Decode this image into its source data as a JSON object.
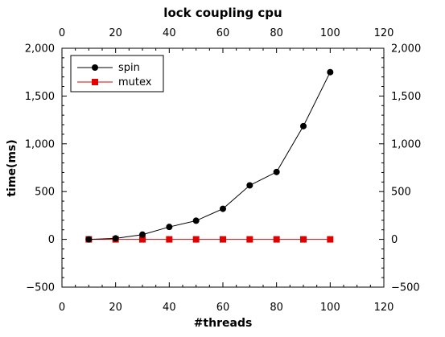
{
  "chart_data": {
    "type": "line",
    "title": "lock coupling cpu",
    "xlabel": "#threads",
    "ylabel": "time(ms)",
    "xlim": [
      0,
      120
    ],
    "ylim": [
      -500,
      2000
    ],
    "x_ticks": [
      0,
      20,
      40,
      60,
      80,
      100,
      120
    ],
    "y_ticks": [
      -500,
      0,
      500,
      1000,
      1500,
      2000
    ],
    "x_tick_labels": [
      "0",
      "20",
      "40",
      "60",
      "80",
      "100",
      "120"
    ],
    "y_tick_labels": [
      "−500",
      "0",
      "500",
      "1,000",
      "1,500",
      "2,000"
    ],
    "grid": false,
    "legend_position": "top-left",
    "x": [
      10,
      20,
      30,
      40,
      50,
      60,
      70,
      80,
      90,
      100
    ],
    "series": [
      {
        "name": "spin",
        "color": "#000000",
        "marker": "circle",
        "values": [
          0,
          10,
          50,
          130,
          195,
          320,
          565,
          705,
          1185,
          1750
        ]
      },
      {
        "name": "mutex",
        "color": "#e00000",
        "marker": "square",
        "values": [
          0,
          0,
          0,
          0,
          0,
          0,
          0,
          0,
          0,
          0
        ]
      }
    ]
  }
}
